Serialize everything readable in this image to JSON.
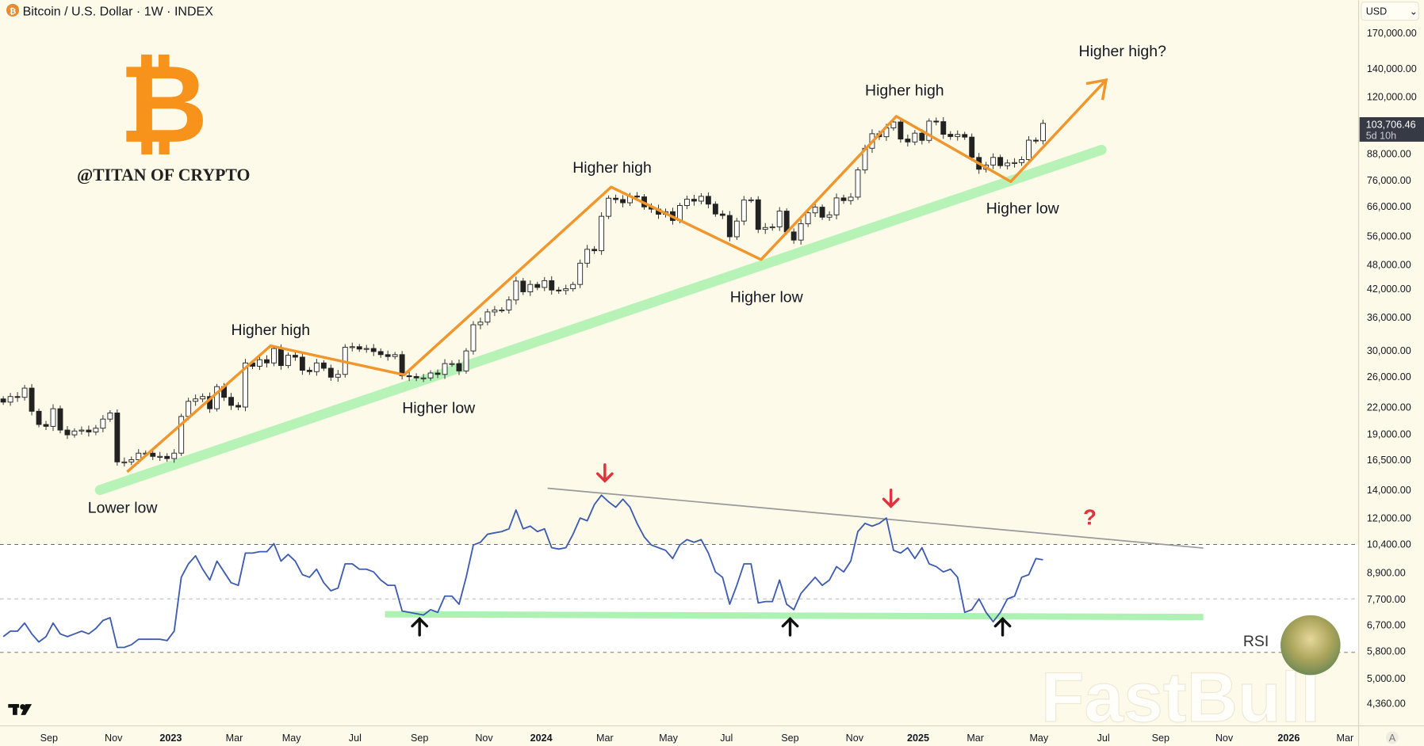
{
  "header": {
    "symbol_title": "Bitcoin / U.S. Dollar · 1W · INDEX",
    "currency": "USD"
  },
  "branding": {
    "logo_glyph": "₿",
    "handle": "@TITAN OF CRYPTO",
    "watermark": "FastBull"
  },
  "price_tag": {
    "price": "103,706.46",
    "countdown": "5d 10h"
  },
  "rsi_label": "RSI",
  "auto_scale": "A",
  "colors": {
    "background": "#fefae9",
    "trend": "#f0962c",
    "support": "#9ff0a6",
    "rsi_line": "#3d5bb0",
    "arrow_red": "#e0343c",
    "bitcoin": "#f7931a"
  },
  "chart_data": {
    "type": "candlestick",
    "title": "Bitcoin / U.S. Dollar · 1W · INDEX",
    "y_scale": "log",
    "ylim": [
      4100,
      200000
    ],
    "price_ticks": [
      "170,000.00",
      "140,000.00",
      "120,000.00",
      "88,000.00",
      "76,000.00",
      "66,000.00",
      "56,000.00",
      "48,000.00",
      "42,000.00",
      "36,000.00",
      "30,000.00",
      "26,000.00",
      "22,000.00",
      "19,000.00",
      "16,500.00",
      "14,000.00",
      "12,000.00",
      "10,400.00",
      "8,900.00",
      "7,700.00",
      "6,700.00",
      "5,800.00",
      "5,000.00",
      "4,360.00"
    ],
    "time_ticks": [
      {
        "label": "Sep",
        "bold": false
      },
      {
        "label": "Nov",
        "bold": false
      },
      {
        "label": "2023",
        "bold": true
      },
      {
        "label": "Mar",
        "bold": false
      },
      {
        "label": "May",
        "bold": false
      },
      {
        "label": "Jul",
        "bold": false
      },
      {
        "label": "Sep",
        "bold": false
      },
      {
        "label": "Nov",
        "bold": false
      },
      {
        "label": "2024",
        "bold": true
      },
      {
        "label": "Mar",
        "bold": false
      },
      {
        "label": "May",
        "bold": false
      },
      {
        "label": "Jul",
        "bold": false
      },
      {
        "label": "Sep",
        "bold": false
      },
      {
        "label": "Nov",
        "bold": false
      },
      {
        "label": "2025",
        "bold": true
      },
      {
        "label": "Mar",
        "bold": false
      },
      {
        "label": "May",
        "bold": false
      },
      {
        "label": "Jul",
        "bold": false
      },
      {
        "label": "Sep",
        "bold": false
      },
      {
        "label": "Nov",
        "bold": false
      },
      {
        "label": "2026",
        "bold": true
      },
      {
        "label": "Mar",
        "bold": false
      }
    ],
    "first_week": "2022-07-18",
    "first_open_k": 23.0,
    "weekly_close_k": [
      22.6,
      23.3,
      23.2,
      24.4,
      21.5,
      20.0,
      19.8,
      21.8,
      19.4,
      18.9,
      19.3,
      19.4,
      19.2,
      19.6,
      20.6,
      21.3,
      16.3,
      16.3,
      16.5,
      17.1,
      17.1,
      16.8,
      16.8,
      16.6,
      17.1,
      20.9,
      22.7,
      23.0,
      23.3,
      21.8,
      24.6,
      23.2,
      22.2,
      22.0,
      28.0,
      27.5,
      28.5,
      28.0,
      30.3,
      27.6,
      29.2,
      28.9,
      26.9,
      26.7,
      28.0,
      27.2,
      25.9,
      26.3,
      30.5,
      30.6,
      30.2,
      30.3,
      29.8,
      29.3,
      29.0,
      29.3,
      26.1,
      26.0,
      25.8,
      25.8,
      26.5,
      26.3,
      27.9,
      27.9,
      26.8,
      29.9,
      34.5,
      35.0,
      37.0,
      37.4,
      37.4,
      39.5,
      43.8,
      41.3,
      43.0,
      42.3,
      43.9,
      41.7,
      41.6,
      42.0,
      43.0,
      48.3,
      52.1,
      51.7,
      62.4,
      68.9,
      68.4,
      67.2,
      69.7,
      69.4,
      65.7,
      64.9,
      63.1,
      64.0,
      61.0,
      66.2,
      68.5,
      67.8,
      69.6,
      66.7,
      63.2,
      62.7,
      55.8,
      60.8,
      68.2,
      68.3,
      58.1,
      58.7,
      58.9,
      64.2,
      57.3,
      54.8,
      59.9,
      63.6,
      65.6,
      62.1,
      62.9,
      69.0,
      68.0,
      69.3,
      80.4,
      90.5,
      98.0,
      96.4,
      101.2,
      104.5,
      95.2,
      93.7,
      98.3,
      94.5,
      105.0,
      104.7,
      97.7,
      96.5,
      97.6,
      96.2,
      86.1,
      80.7,
      82.6,
      86.1,
      82.3,
      83.5,
      83.7,
      85.1,
      94.6,
      94.3,
      103.7
    ],
    "rsi": {
      "levels": [
        70,
        50,
        30
      ],
      "values": [
        36,
        38,
        38,
        41,
        37,
        34,
        36,
        41,
        37,
        36,
        37,
        38,
        37,
        39,
        42,
        43,
        32,
        32,
        33,
        35,
        35,
        35,
        35,
        34.5,
        38,
        58,
        63,
        66,
        61,
        57,
        64,
        60,
        56,
        55,
        67,
        67,
        67.5,
        67.5,
        70.5,
        64,
        66.5,
        64,
        59,
        58,
        61,
        56,
        53,
        54,
        63,
        63,
        61,
        61,
        60,
        57,
        55,
        55,
        45.5,
        45,
        44.5,
        44,
        46,
        45,
        51,
        51,
        48,
        58,
        70,
        71,
        74,
        74.5,
        75,
        76,
        83,
        76,
        77,
        75,
        76,
        69,
        68.5,
        69,
        74,
        80,
        79,
        85,
        88.5,
        86,
        84,
        87,
        84,
        78,
        73,
        70,
        69,
        68,
        65,
        70,
        72,
        71,
        72,
        67,
        60,
        58,
        48,
        55,
        63,
        63,
        48.5,
        49,
        49,
        57,
        48,
        46,
        52,
        55,
        58,
        55,
        57,
        62,
        60,
        64,
        75,
        78,
        77,
        78,
        80,
        68,
        67,
        69,
        65,
        69,
        63,
        62,
        60,
        61,
        58,
        45,
        46,
        50,
        45,
        41.5,
        45,
        50,
        51,
        58,
        59,
        65,
        64.5
      ]
    },
    "annotations": [
      {
        "id": "lower-low",
        "text": "Lower low"
      },
      {
        "id": "higher-high-1",
        "text": "Higher high"
      },
      {
        "id": "higher-low-1",
        "text": "Higher low"
      },
      {
        "id": "higher-high-2",
        "text": "Higher high"
      },
      {
        "id": "higher-low-2",
        "text": "Higher low"
      },
      {
        "id": "higher-high-3",
        "text": "Higher high"
      },
      {
        "id": "higher-low-3",
        "text": "Higher low"
      },
      {
        "id": "higher-high-question",
        "text": "Higher high?"
      },
      {
        "id": "rsi-question",
        "text": "?"
      }
    ]
  }
}
